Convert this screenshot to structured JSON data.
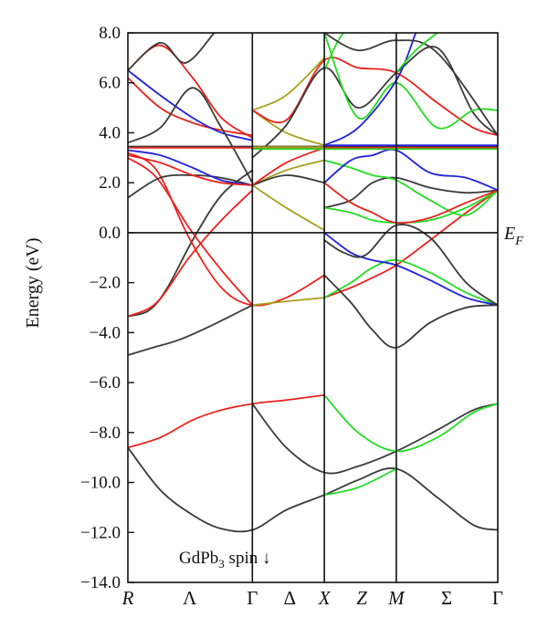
{
  "chart_data": {
    "type": "line",
    "title": "",
    "ylabel": "Energy (eV)",
    "ylim": [
      -14,
      8
    ],
    "yticks": [
      8,
      6,
      4,
      2,
      0,
      -2,
      -4,
      -6,
      -8,
      -10,
      -12,
      -14
    ],
    "ytick_labels": [
      "8.0",
      "6.0",
      "4.0",
      "2.0",
      "0.0",
      "−2.0",
      "−4.0",
      "−6.0",
      "−8.0",
      "−10.0",
      "−12.0",
      "−14.0"
    ],
    "fermi_label": "E",
    "fermi_sub": "F",
    "fermi_energy": 0,
    "annotation": {
      "main": "GdPb",
      "sub": "3",
      "tail": " spin ↓"
    },
    "kpath": {
      "points": [
        {
          "label": "R",
          "x": 0,
          "italic": true
        },
        {
          "label": "Λ",
          "x": 0.86,
          "italic": false
        },
        {
          "label": "Γ",
          "x": 1.73,
          "italic": false,
          "vline": true
        },
        {
          "label": "Δ",
          "x": 2.25,
          "italic": false
        },
        {
          "label": "X",
          "x": 2.73,
          "italic": true,
          "vline": true
        },
        {
          "label": "Z",
          "x": 3.25,
          "italic": true
        },
        {
          "label": "M",
          "x": 3.73,
          "italic": true,
          "vline": true
        },
        {
          "label": "Σ",
          "x": 4.43,
          "italic": false
        },
        {
          "label": "Γ",
          "x": 5.14,
          "italic": false
        }
      ],
      "xmax": 5.14
    },
    "colors": {
      "black": "#3a3a3a",
      "red": "#e8231e",
      "blue": "#2222dd",
      "green": "#22dd22",
      "olive": "#a8a020"
    },
    "series": [
      {
        "color": "black",
        "x": [
          0,
          0.45,
          0.9,
          1.3,
          1.73,
          2.2,
          2.73,
          3.2,
          3.73,
          4.3,
          4.8,
          5.14
        ],
        "y": [
          -8.6,
          -10.3,
          -11.3,
          -11.85,
          -11.9,
          -11.1,
          -10.5,
          -9.9,
          -9.45,
          -10.6,
          -11.7,
          -11.9
        ]
      },
      {
        "color": "black",
        "x": [
          1.73,
          2.2,
          2.73,
          3.2,
          3.73,
          4.3,
          4.8,
          5.14
        ],
        "y": [
          -6.85,
          -8.6,
          -9.6,
          -9.35,
          -8.75,
          -7.9,
          -7.1,
          -6.85
        ]
      },
      {
        "color": "red",
        "x": [
          0,
          0.45,
          0.9,
          1.3,
          1.73,
          2.2,
          2.73
        ],
        "y": [
          -8.6,
          -8.2,
          -7.5,
          -7.1,
          -6.85,
          -6.7,
          -6.5
        ]
      },
      {
        "color": "green",
        "x": [
          2.73,
          3.2,
          3.73,
          4.3,
          4.8,
          5.14
        ],
        "y": [
          -6.5,
          -8.0,
          -8.75,
          -8.2,
          -7.2,
          -6.85
        ]
      },
      {
        "color": "green",
        "x": [
          2.73,
          3.2,
          3.73
        ],
        "y": [
          -10.5,
          -10.2,
          -9.45
        ]
      },
      {
        "color": "black",
        "x": [
          0,
          0.35,
          0.7,
          1.1,
          1.73
        ],
        "y": [
          -4.9,
          -4.6,
          -4.3,
          -3.8,
          -2.9
        ]
      },
      {
        "color": "black",
        "x": [
          0,
          0.3,
          0.55,
          0.9,
          1.3,
          1.73
        ],
        "y": [
          -3.35,
          -3.1,
          -2.2,
          -0.3,
          1.5,
          2.5
        ]
      },
      {
        "color": "red",
        "x": [
          0,
          0.4,
          0.85,
          1.3,
          1.73
        ],
        "y": [
          -3.35,
          -2.8,
          -1.0,
          0.5,
          1.7
        ]
      },
      {
        "color": "red",
        "x": [
          0,
          0.4,
          0.85,
          1.3,
          1.73
        ],
        "y": [
          3.0,
          2.2,
          0.2,
          -1.5,
          -2.9
        ]
      },
      {
        "color": "red",
        "x": [
          0,
          0.4,
          0.85,
          1.3,
          1.73,
          2.2,
          2.73
        ],
        "y": [
          3.2,
          2.5,
          -0.2,
          -2.2,
          -2.9,
          -2.6,
          -1.7
        ]
      },
      {
        "color": "olive",
        "x": [
          1.73,
          2.2,
          2.73
        ],
        "y": [
          -2.9,
          -2.75,
          -2.6
        ]
      },
      {
        "color": "red",
        "x": [
          2.73,
          3.1,
          3.4,
          3.73,
          4.2,
          4.7,
          5.14
        ],
        "y": [
          -2.6,
          -2.2,
          -1.8,
          -1.3,
          -0.3,
          0.8,
          1.7
        ]
      },
      {
        "color": "green",
        "x": [
          2.73,
          3.1,
          3.4,
          3.73,
          4.2,
          4.7,
          5.14
        ],
        "y": [
          -2.6,
          -2.0,
          -1.4,
          -1.1,
          -1.6,
          -2.4,
          -2.9
        ]
      },
      {
        "color": "blue",
        "x": [
          2.73,
          3.1,
          3.4,
          3.73,
          4.2,
          4.7,
          5.14
        ],
        "y": [
          0.0,
          -0.8,
          -1.1,
          -1.3,
          -1.9,
          -2.6,
          -2.9
        ]
      },
      {
        "color": "black",
        "x": [
          2.73,
          3.1,
          3.4,
          3.73,
          4.2,
          4.7,
          5.14
        ],
        "y": [
          -1.7,
          -2.8,
          -3.9,
          -4.6,
          -3.6,
          -3.0,
          -2.9
        ]
      },
      {
        "color": "black",
        "x": [
          2.73,
          3.0,
          3.3,
          3.73,
          4.2,
          4.7,
          5.14
        ],
        "y": [
          -0.3,
          -0.8,
          -0.9,
          0.3,
          -0.2,
          -2.0,
          -2.9
        ]
      },
      {
        "color": "black",
        "x": [
          2.73,
          3.1,
          3.4,
          3.73,
          4.2,
          4.7,
          5.14
        ],
        "y": [
          1.0,
          1.3,
          2.0,
          2.2,
          1.8,
          1.6,
          1.7
        ]
      },
      {
        "color": "green",
        "x": [
          2.73,
          3.1,
          3.4,
          3.73,
          4.2,
          4.7,
          5.14
        ],
        "y": [
          1.0,
          0.8,
          0.5,
          0.4,
          0.5,
          1.0,
          1.7
        ]
      },
      {
        "color": "green",
        "x": [
          2.73,
          3.1,
          3.4,
          3.73,
          4.2,
          4.7,
          5.14
        ],
        "y": [
          2.9,
          2.6,
          2.3,
          2.1,
          1.3,
          0.7,
          1.7
        ]
      },
      {
        "color": "red",
        "x": [
          2.73,
          3.1,
          3.4,
          3.73,
          4.2,
          4.7,
          5.14
        ],
        "y": [
          2.0,
          1.2,
          0.8,
          0.4,
          0.6,
          1.2,
          1.7
        ]
      },
      {
        "color": "blue",
        "x": [
          2.73,
          3.1,
          3.4,
          3.73,
          4.2,
          4.7,
          5.14
        ],
        "y": [
          2.0,
          2.9,
          3.1,
          3.3,
          2.4,
          2.2,
          1.7
        ]
      },
      {
        "color": "olive",
        "x": [
          1.73,
          2.2,
          2.73
        ],
        "y": [
          1.9,
          1.0,
          0.1
        ]
      },
      {
        "color": "olive",
        "x": [
          1.73,
          2.2,
          2.73
        ],
        "y": [
          1.9,
          2.5,
          2.9
        ]
      },
      {
        "color": "black",
        "x": [
          1.73,
          2.2,
          2.73
        ],
        "y": [
          1.9,
          2.3,
          2.0
        ]
      },
      {
        "color": "red",
        "x": [
          1.73,
          2.2,
          2.73
        ],
        "y": [
          1.9,
          2.8,
          3.4
        ]
      },
      {
        "color": "olive",
        "x": [
          1.73,
          2.2,
          2.73
        ],
        "y": [
          4.9,
          4.0,
          3.5
        ]
      },
      {
        "color": "red",
        "x": [
          0,
          0.45,
          0.9,
          1.3,
          1.73
        ],
        "y": [
          6.5,
          7.5,
          6.2,
          4.6,
          3.8
        ]
      },
      {
        "color": "red",
        "x": [
          0,
          0.45,
          0.9,
          1.3,
          1.73
        ],
        "y": [
          6.2,
          5.0,
          4.4,
          4.1,
          3.9
        ]
      },
      {
        "color": "blue",
        "x": [
          0,
          0.45,
          0.9,
          1.3,
          1.73
        ],
        "y": [
          6.5,
          5.5,
          4.6,
          4.0,
          3.7
        ]
      },
      {
        "color": "black",
        "x": [
          0,
          0.45,
          0.9,
          1.3,
          1.73
        ],
        "y": [
          3.6,
          4.2,
          5.8,
          4.2,
          2.0
        ]
      },
      {
        "color": "black",
        "x": [
          0,
          0.45,
          0.8,
          1.2
        ],
        "y": [
          6.5,
          7.6,
          6.8,
          8.0
        ]
      },
      {
        "color": "black",
        "x": [
          0,
          0.45,
          0.9,
          1.3,
          1.73
        ],
        "y": [
          1.4,
          2.2,
          2.3,
          2.2,
          1.9
        ]
      },
      {
        "color": "blue",
        "x": [
          0,
          0.45,
          0.9,
          1.3,
          1.73
        ],
        "y": [
          3.3,
          3.1,
          2.6,
          2.1,
          1.9
        ]
      },
      {
        "color": "red",
        "x": [
          0,
          0.45,
          0.9,
          1.3,
          1.73
        ],
        "y": [
          3.1,
          2.8,
          2.3,
          2.0,
          1.9
        ]
      },
      {
        "color": "red",
        "x": [
          1.73,
          2.2,
          2.73,
          3.2,
          3.73,
          4.3,
          4.8,
          5.14
        ],
        "y": [
          4.9,
          4.5,
          6.9,
          6.6,
          6.4,
          5.2,
          4.2,
          3.9
        ]
      },
      {
        "color": "olive",
        "x": [
          1.73,
          2.2,
          2.73
        ],
        "y": [
          4.9,
          5.5,
          7.0
        ]
      },
      {
        "color": "black",
        "x": [
          1.73,
          2.2,
          2.73,
          3.2,
          3.73,
          4.3,
          4.8,
          5.14
        ],
        "y": [
          3.0,
          4.3,
          6.6,
          5.0,
          6.4,
          7.4,
          4.8,
          3.9
        ]
      },
      {
        "color": "green",
        "x": [
          2.73,
          3.2,
          3.73,
          4.3,
          4.8,
          5.14
        ],
        "y": [
          8.0,
          4.6,
          6.0,
          4.2,
          4.9,
          4.9
        ]
      },
      {
        "color": "green",
        "x": [
          2.73,
          3.0,
          3.3
        ],
        "y": [
          6.5,
          8.0,
          8.0
        ]
      },
      {
        "color": "blue",
        "x": [
          2.73,
          3.2,
          3.73,
          4.0
        ],
        "y": [
          3.5,
          4.2,
          6.1,
          8.0
        ]
      },
      {
        "color": "black",
        "x": [
          2.73,
          3.2,
          3.73,
          4.3,
          5.14
        ],
        "y": [
          8.0,
          7.3,
          7.7,
          7.2,
          3.9
        ]
      },
      {
        "color": "green",
        "x": [
          3.73,
          4.0,
          4.3
        ],
        "y": [
          6.4,
          7.3,
          8.0
        ]
      },
      {
        "color": "black",
        "x": [
          0,
          1.73,
          2.73,
          3.73,
          5.14
        ],
        "y": [
          3.45,
          3.45,
          3.45,
          3.45,
          3.45
        ]
      },
      {
        "color": "red",
        "x": [
          0,
          1.73,
          2.73,
          3.73,
          5.14
        ],
        "y": [
          3.4,
          3.4,
          3.4,
          3.4,
          3.4
        ]
      },
      {
        "color": "green",
        "x": [
          1.73,
          2.73,
          3.73,
          5.14
        ],
        "y": [
          3.35,
          3.35,
          3.35,
          3.35
        ]
      },
      {
        "color": "blue",
        "x": [
          2.73,
          3.73,
          5.14
        ],
        "y": [
          3.5,
          3.5,
          3.5
        ]
      },
      {
        "color": "olive",
        "x": [
          1.73,
          2.2,
          2.73
        ],
        "y": [
          3.42,
          3.42,
          3.42
        ]
      }
    ]
  }
}
